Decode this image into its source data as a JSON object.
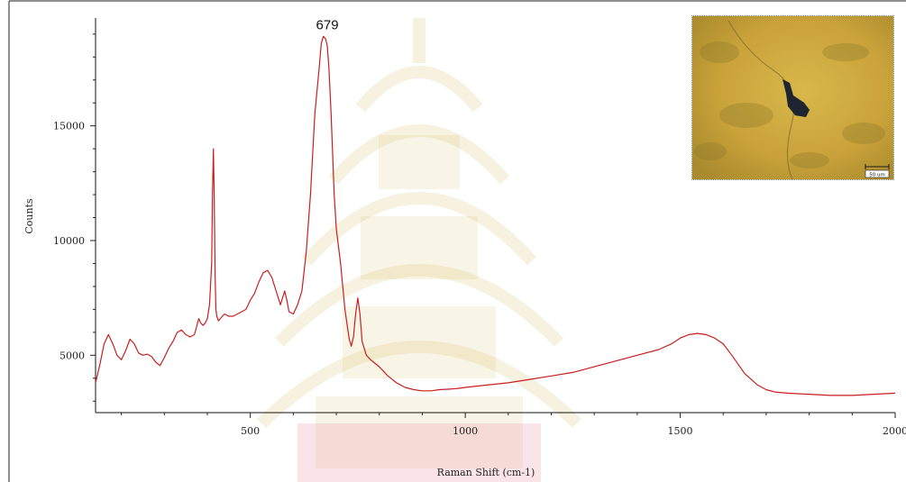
{
  "chart_data": {
    "type": "line",
    "title": "",
    "xlabel": "Raman Shift (cm-1)",
    "ylabel": "Counts",
    "xlim": [
      140,
      2000
    ],
    "ylim": [
      2500,
      19700
    ],
    "xticks": [
      500,
      1000,
      1500,
      2000
    ],
    "yticks": [
      5000,
      10000,
      15000
    ],
    "grid": false,
    "legend": "none",
    "series": [
      {
        "color": "#c81e1e",
        "x": [
          140,
          150,
          160,
          170,
          180,
          190,
          200,
          210,
          220,
          230,
          240,
          250,
          260,
          270,
          280,
          290,
          300,
          310,
          320,
          330,
          340,
          350,
          360,
          370,
          380,
          385,
          390,
          395,
          400,
          405,
          410,
          412,
          414,
          416,
          418,
          420,
          422,
          424,
          426,
          430,
          440,
          450,
          460,
          470,
          480,
          490,
          500,
          510,
          520,
          530,
          540,
          550,
          560,
          570,
          575,
          580,
          585,
          590,
          600,
          610,
          620,
          630,
          640,
          650,
          660,
          665,
          670,
          675,
          679,
          683,
          688,
          695,
          700,
          710,
          720,
          730,
          735,
          740,
          745,
          750,
          755,
          760,
          770,
          780,
          800,
          820,
          840,
          860,
          880,
          900,
          920,
          940,
          960,
          980,
          1000,
          1050,
          1100,
          1150,
          1200,
          1250,
          1300,
          1350,
          1400,
          1450,
          1480,
          1500,
          1520,
          1540,
          1560,
          1580,
          1600,
          1620,
          1650,
          1680,
          1700,
          1720,
          1750,
          1800,
          1850,
          1900,
          1950,
          2000
        ],
        "y": [
          3800,
          4600,
          5500,
          5900,
          5500,
          5000,
          4800,
          5200,
          5700,
          5500,
          5100,
          5000,
          5050,
          4950,
          4700,
          4550,
          4900,
          5300,
          5600,
          6000,
          6100,
          5900,
          5800,
          5900,
          6600,
          6400,
          6300,
          6400,
          6600,
          7200,
          9000,
          12000,
          14000,
          12000,
          8500,
          7000,
          6700,
          6600,
          6500,
          6600,
          6800,
          6700,
          6700,
          6800,
          6900,
          7000,
          7400,
          7700,
          8200,
          8600,
          8700,
          8400,
          7800,
          7200,
          7500,
          7800,
          7400,
          6900,
          6800,
          7200,
          7800,
          9500,
          12000,
          15500,
          17500,
          18600,
          18900,
          18800,
          18500,
          17500,
          15500,
          12000,
          10500,
          9000,
          7000,
          5700,
          5400,
          5800,
          6800,
          7500,
          6800,
          5600,
          5000,
          4800,
          4500,
          4100,
          3800,
          3600,
          3500,
          3450,
          3450,
          3500,
          3520,
          3550,
          3600,
          3700,
          3800,
          3950,
          4100,
          4250,
          4500,
          4750,
          5000,
          5250,
          5500,
          5750,
          5900,
          5950,
          5900,
          5750,
          5500,
          5000,
          4200,
          3700,
          3500,
          3400,
          3350,
          3300,
          3250,
          3250,
          3300,
          3350
        ]
      }
    ],
    "annotations": [
      {
        "text": "679",
        "x": 679,
        "y": 18900
      }
    ]
  },
  "inset": {
    "scale_bar_label": "50 um"
  }
}
